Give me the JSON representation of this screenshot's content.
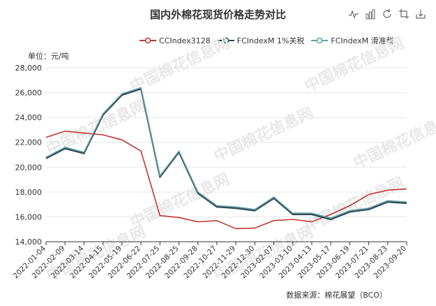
{
  "title": "国内外棉花现货价格走势对比",
  "unit_label": "单位：元/吨",
  "source_label": "数据来源：棉花展望（BCO）",
  "watermark_text": "中国棉花信息网",
  "toolbox": {
    "icons": [
      "line-chart-icon",
      "bar-chart-icon",
      "restore-icon",
      "crop-icon",
      "download-icon"
    ]
  },
  "colors": {
    "cc": "#c23531",
    "fc1": "#2f4554",
    "fc2": "#61a0a8",
    "grid": "#e6e6e6",
    "axis": "#333333"
  },
  "chart_data": {
    "type": "line",
    "title": "国内外棉花现货价格走势对比",
    "ylabel": "单位：元/吨",
    "xlabel": "",
    "ylim": [
      14000,
      28000
    ],
    "yticks": [
      14000,
      16000,
      18000,
      20000,
      22000,
      24000,
      26000,
      28000
    ],
    "ytick_labels": [
      "14,000",
      "16,000",
      "18,000",
      "20,000",
      "22,000",
      "24,000",
      "26,000",
      "28,000"
    ],
    "legend_position": "top-center",
    "grid": true,
    "x": [
      "2022-01-04",
      "2022-02-09",
      "2022-03-14",
      "2022-04-15",
      "2022-05-19",
      "2022-06-22",
      "2022-07-25",
      "2022-08-25",
      "2022-09-28",
      "2022-10-27",
      "2022-11-29",
      "2022-12-30",
      "2023-02-07",
      "2023-03-10",
      "2023-04-13",
      "2023-05-17",
      "2023-06-19",
      "2023-07-21",
      "2023-08-23",
      "2023-09-20"
    ],
    "series": [
      {
        "name": "CCIndex3128",
        "values": [
          22400,
          22900,
          22750,
          22600,
          22200,
          21300,
          16100,
          15950,
          15600,
          15700,
          15050,
          15100,
          15700,
          15800,
          15600,
          16200,
          16900,
          17800,
          18150,
          18250
        ]
      },
      {
        "name": "FCIndexM 1%关税",
        "values": [
          20700,
          21500,
          21100,
          24200,
          25800,
          26300,
          19200,
          21200,
          17900,
          16800,
          16700,
          16500,
          17500,
          16200,
          16200,
          15800,
          16400,
          16600,
          17200,
          17100
        ]
      },
      {
        "name": "FCIndexM 滑准税",
        "values": [
          20800,
          21600,
          21200,
          24300,
          25900,
          26400,
          19300,
          21300,
          18000,
          16900,
          16800,
          16600,
          17600,
          16300,
          16300,
          15900,
          16500,
          16700,
          17300,
          17200
        ]
      }
    ]
  }
}
